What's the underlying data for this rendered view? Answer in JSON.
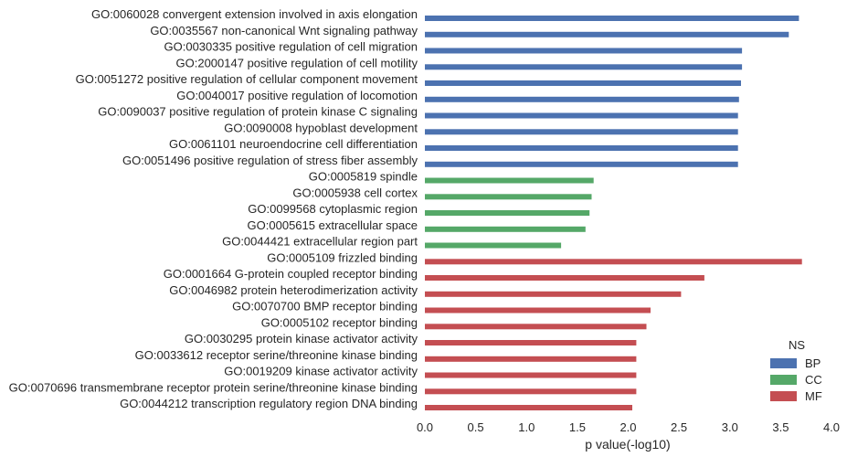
{
  "chart_data": {
    "type": "bar",
    "orientation": "horizontal",
    "title": "",
    "xlabel": "p value(-log10)",
    "ylabel": "",
    "xlim": [
      0,
      4.0
    ],
    "xticks": [
      "0.0",
      "0.5",
      "1.0",
      "1.5",
      "2.0",
      "2.5",
      "3.0",
      "3.5",
      "4.0"
    ],
    "grid": false,
    "legend": {
      "title": "NS",
      "placement": "bottom-right",
      "entries": [
        {
          "name": "BP",
          "color": "#4c72b0"
        },
        {
          "name": "CC",
          "color": "#55a868"
        },
        {
          "name": "MF",
          "color": "#c44e52"
        }
      ]
    },
    "categories": [
      {
        "label": "GO:0060028 convergent extension involved in axis elongation",
        "value": 3.68,
        "ns": "BP"
      },
      {
        "label": "GO:0035567 non-canonical Wnt signaling pathway",
        "value": 3.58,
        "ns": "BP"
      },
      {
        "label": "GO:0030335 positive regulation of cell migration",
        "value": 3.12,
        "ns": "BP"
      },
      {
        "label": "GO:2000147 positive regulation of cell motility",
        "value": 3.12,
        "ns": "BP"
      },
      {
        "label": "GO:0051272 positive regulation of cellular component movement",
        "value": 3.11,
        "ns": "BP"
      },
      {
        "label": "GO:0040017 positive regulation of locomotion",
        "value": 3.09,
        "ns": "BP"
      },
      {
        "label": "GO:0090037 positive regulation of protein kinase C signaling",
        "value": 3.08,
        "ns": "BP"
      },
      {
        "label": "GO:0090008 hypoblast development",
        "value": 3.08,
        "ns": "BP"
      },
      {
        "label": "GO:0061101 neuroendocrine cell differentiation",
        "value": 3.08,
        "ns": "BP"
      },
      {
        "label": "GO:0051496 positive regulation of stress fiber assembly",
        "value": 3.08,
        "ns": "BP"
      },
      {
        "label": "GO:0005819 spindle",
        "value": 1.66,
        "ns": "CC"
      },
      {
        "label": "GO:0005938 cell cortex",
        "value": 1.64,
        "ns": "CC"
      },
      {
        "label": "GO:0099568 cytoplasmic region",
        "value": 1.62,
        "ns": "CC"
      },
      {
        "label": "GO:0005615 extracellular space",
        "value": 1.58,
        "ns": "CC"
      },
      {
        "label": "GO:0044421 extracellular region part",
        "value": 1.34,
        "ns": "CC"
      },
      {
        "label": "GO:0005109 frizzled binding",
        "value": 3.71,
        "ns": "MF"
      },
      {
        "label": "GO:0001664 G-protein coupled receptor binding",
        "value": 2.75,
        "ns": "MF"
      },
      {
        "label": "GO:0046982 protein heterodimerization activity",
        "value": 2.52,
        "ns": "MF"
      },
      {
        "label": "GO:0070700 BMP receptor binding",
        "value": 2.22,
        "ns": "MF"
      },
      {
        "label": "GO:0005102 receptor binding",
        "value": 2.18,
        "ns": "MF"
      },
      {
        "label": "GO:0030295 protein kinase activator activity",
        "value": 2.08,
        "ns": "MF"
      },
      {
        "label": "GO:0033612 receptor serine/threonine kinase binding",
        "value": 2.08,
        "ns": "MF"
      },
      {
        "label": "GO:0019209 kinase activator activity",
        "value": 2.08,
        "ns": "MF"
      },
      {
        "label": "GO:0070696 transmembrane receptor protein serine/threonine kinase binding",
        "value": 2.08,
        "ns": "MF"
      },
      {
        "label": "GO:0044212 transcription regulatory region DNA binding",
        "value": 2.04,
        "ns": "MF"
      }
    ]
  }
}
